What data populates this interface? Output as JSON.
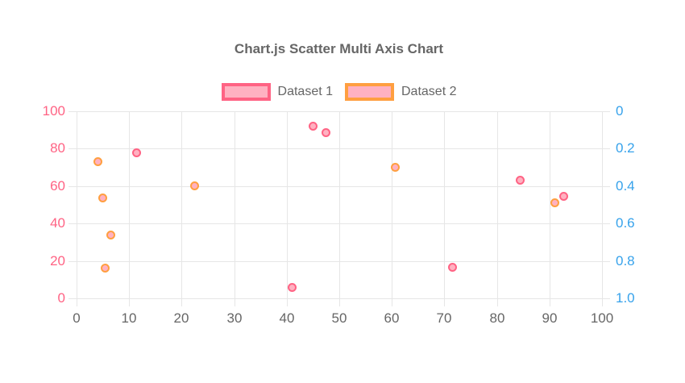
{
  "title": "Chart.js Scatter Multi Axis Chart",
  "chart_data": {
    "type": "scatter",
    "title": "Chart.js Scatter Multi Axis Chart",
    "legend_position": "top",
    "grid": true,
    "grid_color": "#e6e6e6",
    "x_axis": {
      "min": 0,
      "max": 100,
      "ticks": [
        0,
        10,
        20,
        30,
        40,
        50,
        60,
        70,
        80,
        90,
        100
      ],
      "tick_color": "#666666"
    },
    "y_axis_left": {
      "min": 0,
      "max": 100,
      "reversed": false,
      "ticks_top_to_bottom": [
        "100",
        "80",
        "60",
        "40",
        "20",
        "0"
      ],
      "tick_color": "#ff6384"
    },
    "y_axis_right": {
      "min": 0,
      "max": 1,
      "reversed": true,
      "ticks_top_to_bottom": [
        "0",
        "0.2",
        "0.4",
        "0.6",
        "0.8",
        "1.0"
      ],
      "tick_color": "#36a2eb"
    },
    "series": [
      {
        "name": "Dataset 1",
        "y_axis": "left",
        "border_color": "#ff6384",
        "fill_color": "#ffb1c1",
        "points": [
          {
            "x": 11.5,
            "y": 78
          },
          {
            "x": 41,
            "y": 6
          },
          {
            "x": 45,
            "y": 92
          },
          {
            "x": 47.5,
            "y": 88.5
          },
          {
            "x": 71.5,
            "y": 16.5
          },
          {
            "x": 84.5,
            "y": 63
          },
          {
            "x": 92.7,
            "y": 54.5
          }
        ]
      },
      {
        "name": "Dataset 2",
        "y_axis": "right",
        "border_color": "#ff9f40",
        "fill_color": "#ffb1c1",
        "points": [
          {
            "x": 4,
            "y": 0.27
          },
          {
            "x": 5,
            "y": 0.465
          },
          {
            "x": 5.5,
            "y": 0.84
          },
          {
            "x": 6.5,
            "y": 0.66
          },
          {
            "x": 22.5,
            "y": 0.4
          },
          {
            "x": 60.7,
            "y": 0.3
          },
          {
            "x": 91,
            "y": 0.49
          }
        ]
      }
    ]
  }
}
